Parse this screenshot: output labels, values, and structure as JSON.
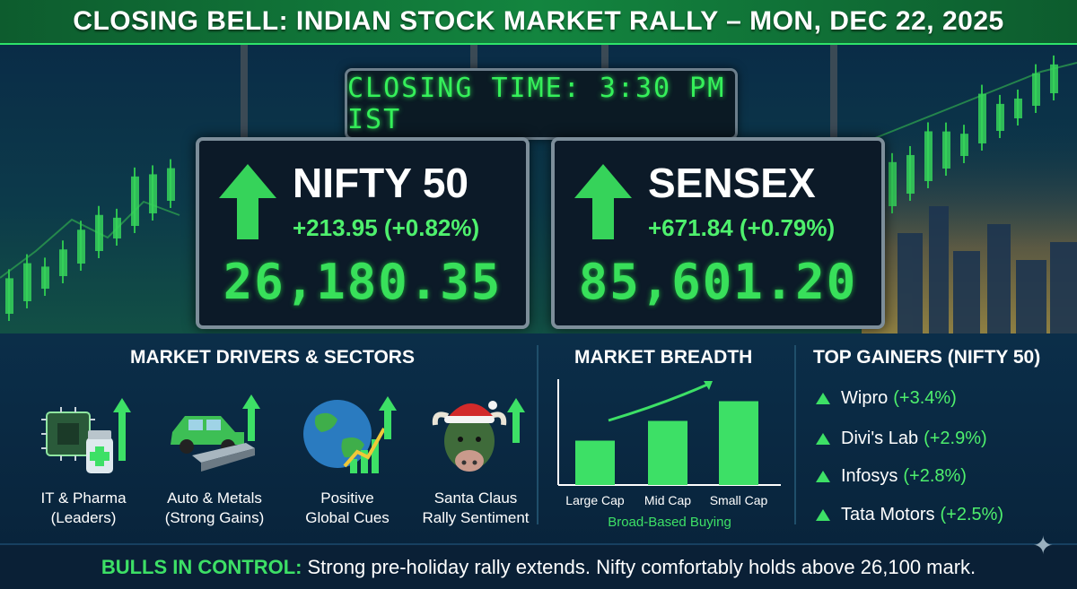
{
  "banner": {
    "title": "CLOSING BELL: INDIAN STOCK MARKET RALLY – MON, DEC 22, 2025"
  },
  "clock": {
    "text": "CLOSING TIME: 3:30 PM IST"
  },
  "indices": [
    {
      "name": "NIFTY 50",
      "change": "+213.95 (+0.82%)",
      "value": "26,180.35"
    },
    {
      "name": "SENSEX",
      "change": "+671.84 (+0.79%)",
      "value": "85,601.20"
    }
  ],
  "drivers": {
    "title": "MARKET DRIVERS & SECTORS",
    "items": [
      {
        "line1": "IT & Pharma",
        "line2": "(Leaders)",
        "icon": "chip-pill-icon"
      },
      {
        "line1": "Auto & Metals",
        "line2": "(Strong Gains)",
        "icon": "car-steel-icon"
      },
      {
        "line1": "Positive",
        "line2": "Global Cues",
        "icon": "globe-chart-icon"
      },
      {
        "line1": "Santa Claus",
        "line2": "Rally Sentiment",
        "icon": "bull-santa-icon"
      }
    ]
  },
  "breadth": {
    "title": "MARKET BREADTH",
    "caption": "Broad-Based Buying"
  },
  "chart_data": {
    "type": "bar",
    "categories": [
      "Large Cap",
      "Mid Cap",
      "Small Cap"
    ],
    "values": [
      0.45,
      0.65,
      0.85
    ],
    "title": "MARKET BREADTH",
    "xlabel": "Broad-Based Buying",
    "ylabel": "",
    "ylim": [
      0,
      1
    ],
    "color": "#3de066"
  },
  "gainers": {
    "title": "TOP GAINERS (NIFTY 50)",
    "items": [
      {
        "name": "Wipro",
        "pct": "(+3.4%)"
      },
      {
        "name": "Divi's Lab",
        "pct": "(+2.9%)"
      },
      {
        "name": "Infosys",
        "pct": "(+2.8%)"
      },
      {
        "name": "Tata Motors",
        "pct": "(+2.5%)"
      }
    ]
  },
  "footer": {
    "highlight": "BULLS IN CONTROL:",
    "text": "Strong pre-holiday rally extends. Nifty comfortably holds above 26,100 mark."
  },
  "colors": {
    "accent": "#3de066",
    "board_text": "#38e05a",
    "banner": "#13853f"
  }
}
